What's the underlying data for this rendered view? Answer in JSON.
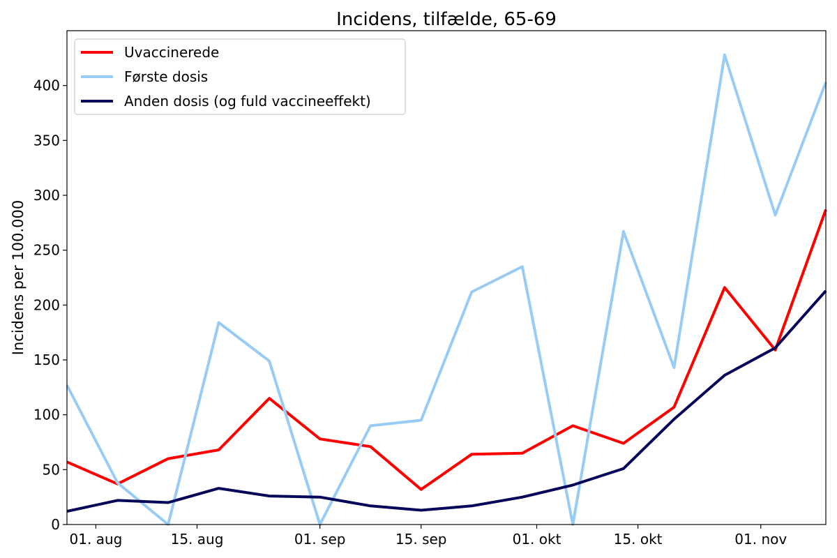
{
  "chart_data": {
    "type": "line",
    "title": "Incidens, tilfælde, 65-69",
    "xlabel": "",
    "ylabel": "Incidens per 100.000",
    "x": [
      "2021-07-28",
      "2021-08-04",
      "2021-08-11",
      "2021-08-18",
      "2021-08-25",
      "2021-09-01",
      "2021-09-08",
      "2021-09-15",
      "2021-09-22",
      "2021-09-29",
      "2021-10-06",
      "2021-10-13",
      "2021-10-20",
      "2021-10-27",
      "2021-11-03",
      "2021-11-10"
    ],
    "xlim": [
      "2021-07-28",
      "2021-11-10"
    ],
    "xticks": [
      {
        "date": "2021-08-01",
        "label": "01. aug"
      },
      {
        "date": "2021-08-15",
        "label": "15. aug"
      },
      {
        "date": "2021-09-01",
        "label": "01. sep"
      },
      {
        "date": "2021-09-15",
        "label": "15. sep"
      },
      {
        "date": "2021-10-01",
        "label": "01. okt"
      },
      {
        "date": "2021-10-15",
        "label": "15. okt"
      },
      {
        "date": "2021-11-01",
        "label": "01. nov"
      }
    ],
    "ylim": [
      0,
      450
    ],
    "yticks": [
      0,
      50,
      100,
      150,
      200,
      250,
      300,
      350,
      400
    ],
    "grid": false,
    "legend_position": "top-left",
    "series": [
      {
        "name": "Uvaccinerede",
        "color": "#ff0000",
        "values": [
          57,
          37,
          60,
          68,
          115,
          78,
          71,
          32,
          64,
          65,
          90,
          74,
          107,
          216,
          159,
          287
        ]
      },
      {
        "name": "Første dosis",
        "color": "#99ccf5",
        "values": [
          127,
          38,
          0,
          184,
          149,
          0,
          90,
          95,
          212,
          235,
          0,
          267,
          143,
          428,
          282,
          403
        ]
      },
      {
        "name": "Anden dosis (og fuld vaccineeffekt)",
        "color": "#05055a",
        "values": [
          12,
          22,
          20,
          33,
          26,
          25,
          17,
          13,
          17,
          25,
          36,
          51,
          96,
          136,
          161,
          213
        ]
      }
    ]
  }
}
